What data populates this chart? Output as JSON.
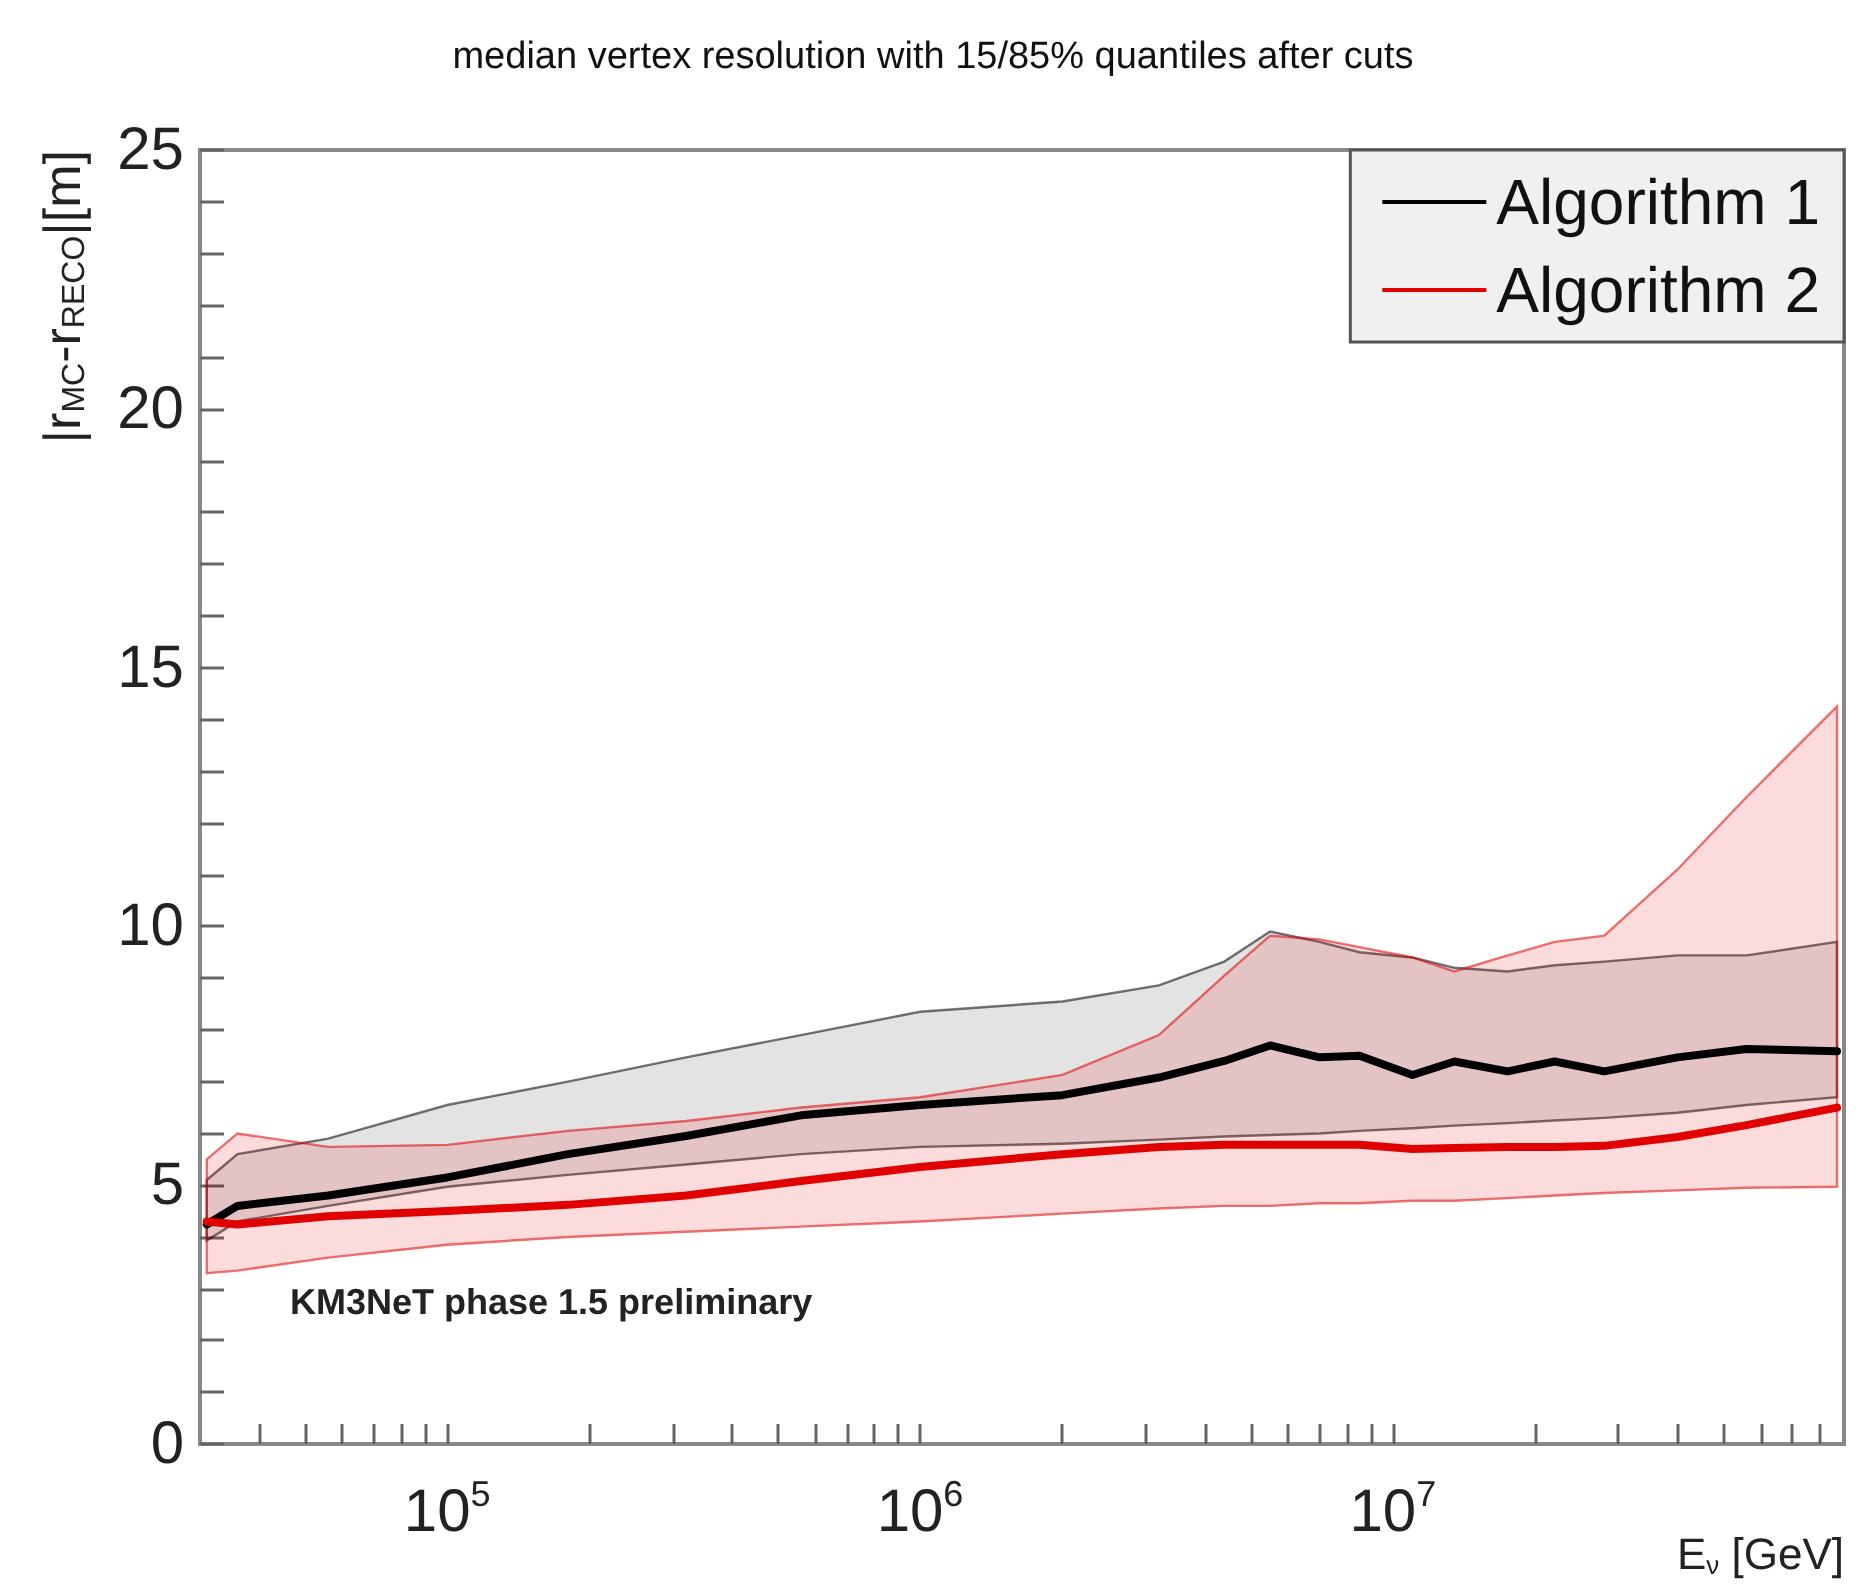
{
  "chart_data": {
    "type": "line",
    "title": "median vertex resolution with 15/85% quantiles after cuts",
    "xlabel": "E$_{ν}$ [GeV]",
    "ylabel": "|r$_{MC}$-r$_{RECO}$|[m]",
    "annotations": [
      "KM3NeT phase 1.5 preliminary"
    ],
    "log": "x",
    "x": [
      31000,
      36000,
      56000,
      100000,
      180000,
      320000,
      560000,
      1000000,
      2000000,
      3200000,
      4400000,
      5500000,
      7000000,
      8500000,
      11000000,
      13500000,
      17500000,
      22000000,
      28000000,
      40000000,
      56000000,
      87000000
    ],
    "xlim": [
      30000,
      90000000
    ],
    "xticks": [
      {
        "value": 40000,
        "label": null
      },
      {
        "value": 50000,
        "label": null
      },
      {
        "value": 60000,
        "label": null
      },
      {
        "value": 70000,
        "label": null
      },
      {
        "value": 80000,
        "label": null
      },
      {
        "value": 90000,
        "label": null
      },
      {
        "value": 100000,
        "label": "10$^{5}$"
      },
      {
        "value": 200000,
        "label": null
      },
      {
        "value": 300000,
        "label": null
      },
      {
        "value": 400000,
        "label": null
      },
      {
        "value": 500000,
        "label": null
      },
      {
        "value": 600000,
        "label": null
      },
      {
        "value": 700000,
        "label": null
      },
      {
        "value": 800000,
        "label": null
      },
      {
        "value": 900000,
        "label": null
      },
      {
        "value": 1000000,
        "label": "10$^{6}$"
      },
      {
        "value": 2000000,
        "label": null
      },
      {
        "value": 3000000,
        "label": null
      },
      {
        "value": 4000000,
        "label": null
      },
      {
        "value": 5000000,
        "label": null
      },
      {
        "value": 6000000,
        "label": null
      },
      {
        "value": 7000000,
        "label": null
      },
      {
        "value": 8000000,
        "label": null
      },
      {
        "value": 9000000,
        "label": null
      },
      {
        "value": 10000000,
        "label": "10$^{7}$"
      },
      {
        "value": 20000000,
        "label": null
      },
      {
        "value": 30000000,
        "label": null
      },
      {
        "value": 40000000,
        "label": null
      },
      {
        "value": 50000000,
        "label": null
      },
      {
        "value": 60000000,
        "label": null
      },
      {
        "value": 70000000,
        "label": null
      },
      {
        "value": 80000000,
        "label": null
      }
    ],
    "ylim": [
      0,
      25
    ],
    "yticks": [
      0,
      {
        "value": 1,
        "label": null
      },
      {
        "value": 2,
        "label": null
      },
      {
        "value": 3,
        "label": null
      },
      {
        "value": 4,
        "label": null
      },
      5,
      {
        "value": 6,
        "label": null
      },
      {
        "value": 7,
        "label": null
      },
      {
        "value": 8,
        "label": null
      },
      {
        "value": 9,
        "label": null
      },
      10,
      {
        "value": 11,
        "label": null
      },
      {
        "value": 12,
        "label": null
      },
      {
        "value": 13,
        "label": null
      },
      {
        "value": 14,
        "label": null
      },
      15,
      {
        "value": 16,
        "label": null
      },
      {
        "value": 17,
        "label": null
      },
      {
        "value": 18,
        "label": null
      },
      {
        "value": 19,
        "label": null
      },
      20,
      {
        "value": 21,
        "label": null
      },
      {
        "value": 22,
        "label": null
      },
      {
        "value": 23,
        "label": null
      },
      {
        "value": 24,
        "label": null
      },
      25
    ],
    "legend": "top right",
    "marker": "none",
    "series": [
      {
        "name": "Algorithm 1",
        "color": "#000000",
        "values": [
          4.24,
          4.6,
          4.8,
          5.15,
          5.6,
          5.95,
          6.35,
          6.55,
          6.74,
          7.08,
          7.4,
          7.7,
          7.47,
          7.5,
          7.13,
          7.39,
          7.2,
          7.39,
          7.2,
          7.47,
          7.63,
          7.59
        ],
        "lower": [
          3.93,
          4.3,
          4.6,
          4.97,
          5.2,
          5.4,
          5.6,
          5.74,
          5.8,
          5.88,
          5.94,
          5.97,
          6.0,
          6.05,
          6.1,
          6.15,
          6.2,
          6.25,
          6.3,
          6.4,
          6.55,
          6.7
        ],
        "upper": [
          5.1,
          5.6,
          5.9,
          6.55,
          7.0,
          7.47,
          7.9,
          8.35,
          8.55,
          8.86,
          9.32,
          9.9,
          9.7,
          9.5,
          9.4,
          9.2,
          9.13,
          9.25,
          9.32,
          9.44,
          9.44,
          9.7
        ]
      },
      {
        "name": "Algorithm 2",
        "color": "#e00000",
        "values": [
          4.3,
          4.24,
          4.4,
          4.5,
          4.62,
          4.8,
          5.08,
          5.35,
          5.6,
          5.74,
          5.78,
          5.78,
          5.78,
          5.78,
          5.7,
          5.72,
          5.74,
          5.74,
          5.76,
          5.93,
          6.16,
          6.5
        ],
        "lower": [
          3.3,
          3.35,
          3.6,
          3.85,
          4.0,
          4.1,
          4.2,
          4.3,
          4.45,
          4.55,
          4.6,
          4.6,
          4.65,
          4.65,
          4.7,
          4.7,
          4.75,
          4.8,
          4.85,
          4.9,
          4.95,
          4.97
        ],
        "upper": [
          5.5,
          6.0,
          5.74,
          5.78,
          6.05,
          6.24,
          6.5,
          6.7,
          7.13,
          7.9,
          9.05,
          9.82,
          9.75,
          9.6,
          9.4,
          9.13,
          9.44,
          9.7,
          9.82,
          11.1,
          12.5,
          14.25
        ]
      }
    ]
  }
}
